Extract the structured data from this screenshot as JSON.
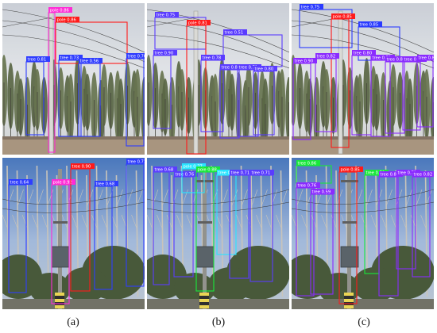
{
  "captions": [
    "(a)",
    "(b)",
    "(c)"
  ],
  "colors": {
    "tree_a": "#2f3dff",
    "pole_a_top": "#ff2bd6",
    "pole_a_bottom": "#ff2bd6",
    "red": "#ff1a1a",
    "tree_b_top": "#5a3cff",
    "cyan": "#2ae5ff",
    "green": "#18e83a",
    "tree_c": "#8a2bff",
    "tree_c_blue": "#2a3aff"
  },
  "panels": [
    {
      "id": "a-top",
      "scene": "sky",
      "detections": [
        {
          "label": "pole 0.86",
          "kind": "pole",
          "color": "#ff2bd6"
        },
        {
          "label": "pole 0.86",
          "kind": "pole",
          "color": "#ff1a1a"
        },
        {
          "label": "tree 0.81",
          "kind": "tree",
          "color": "#2f3dff"
        },
        {
          "label": "tree 0.73",
          "kind": "tree",
          "color": "#2f3dff"
        },
        {
          "label": "tree 0.56",
          "kind": "tree",
          "color": "#2f3dff"
        },
        {
          "label": "tree 0.70",
          "kind": "tree",
          "color": "#2f3dff"
        }
      ]
    },
    {
      "id": "b-top",
      "scene": "sky",
      "detections": [
        {
          "label": "tree 0.75",
          "kind": "tree",
          "color": "#5a3cff"
        },
        {
          "label": "pole 0.81",
          "kind": "pole",
          "color": "#ff1a1a"
        },
        {
          "label": "tree 0.51",
          "kind": "tree",
          "color": "#5a3cff"
        },
        {
          "label": "tree 0.90",
          "kind": "tree",
          "color": "#5a3cff"
        },
        {
          "label": "tree 0.78",
          "kind": "tree",
          "color": "#5a3cff"
        },
        {
          "label": "tree 0.82",
          "kind": "tree",
          "color": "#5a3cff"
        },
        {
          "label": "tree 0.71",
          "kind": "tree",
          "color": "#5a3cff"
        },
        {
          "label": "tree 0.80",
          "kind": "tree",
          "color": "#5a3cff"
        }
      ]
    },
    {
      "id": "c-top",
      "scene": "sky",
      "detections": [
        {
          "label": "tree 0.75",
          "kind": "tree",
          "color": "#2a3aff"
        },
        {
          "label": "pole 0.85",
          "kind": "pole",
          "color": "#ff1a1a"
        },
        {
          "label": "tree 0.85",
          "kind": "tree",
          "color": "#2a3aff"
        },
        {
          "label": "tree 0.90",
          "kind": "tree",
          "color": "#8a2bff"
        },
        {
          "label": "tree 0.82",
          "kind": "tree",
          "color": "#8a2bff"
        },
        {
          "label": "tree 0.80",
          "kind": "tree",
          "color": "#8a2bff"
        },
        {
          "label": "tree 0.79",
          "kind": "tree",
          "color": "#8a2bff"
        },
        {
          "label": "tree 0.86",
          "kind": "tree",
          "color": "#8a2bff"
        },
        {
          "label": "tree 0.82",
          "kind": "tree",
          "color": "#8a2bff"
        },
        {
          "label": "tree 0.83",
          "kind": "tree",
          "color": "#8a2bff"
        }
      ]
    },
    {
      "id": "a-bottom",
      "scene": "transformer",
      "detections": [
        {
          "label": "tree 0.64",
          "kind": "tree",
          "color": "#2f3dff"
        },
        {
          "label": "pole 0.92",
          "kind": "pole",
          "color": "#ff2bd6"
        },
        {
          "label": "tree 0.90",
          "kind": "tree",
          "color": "#ff1a1a"
        },
        {
          "label": "tree 0.68",
          "kind": "tree",
          "color": "#2f3dff"
        },
        {
          "label": "tree 0.71",
          "kind": "tree",
          "color": "#2f3dff"
        }
      ]
    },
    {
      "id": "b-bottom",
      "scene": "transformer",
      "detections": [
        {
          "label": "tree 0.68",
          "kind": "tree",
          "color": "#5a3cff"
        },
        {
          "label": "tree 0.76",
          "kind": "tree",
          "color": "#5a3cff"
        },
        {
          "label": "pole 0.77",
          "kind": "pole",
          "color": "#2ae5ff"
        },
        {
          "label": "pole 0.88",
          "kind": "pole",
          "color": "#18e83a"
        },
        {
          "label": "tree 0.54",
          "kind": "tree",
          "color": "#2ae5ff"
        },
        {
          "label": "tree 0.71",
          "kind": "tree",
          "color": "#5a3cff"
        },
        {
          "label": "tree 0.71",
          "kind": "tree",
          "color": "#5a3cff"
        }
      ]
    },
    {
      "id": "c-bottom",
      "scene": "transformer",
      "detections": [
        {
          "label": "tree 0.86",
          "kind": "tree",
          "color": "#18e83a"
        },
        {
          "label": "tree 0.76",
          "kind": "tree",
          "color": "#8a2bff"
        },
        {
          "label": "tree 0.59",
          "kind": "tree",
          "color": "#8a2bff"
        },
        {
          "label": "pole 0.85",
          "kind": "pole",
          "color": "#ff1a1a"
        },
        {
          "label": "tree 0.79",
          "kind": "tree",
          "color": "#18e83a"
        },
        {
          "label": "tree 0.80",
          "kind": "tree",
          "color": "#8a2bff"
        },
        {
          "label": "tree 0.71",
          "kind": "tree",
          "color": "#8a2bff"
        },
        {
          "label": "tree 0.82",
          "kind": "tree",
          "color": "#8a2bff"
        }
      ]
    }
  ]
}
